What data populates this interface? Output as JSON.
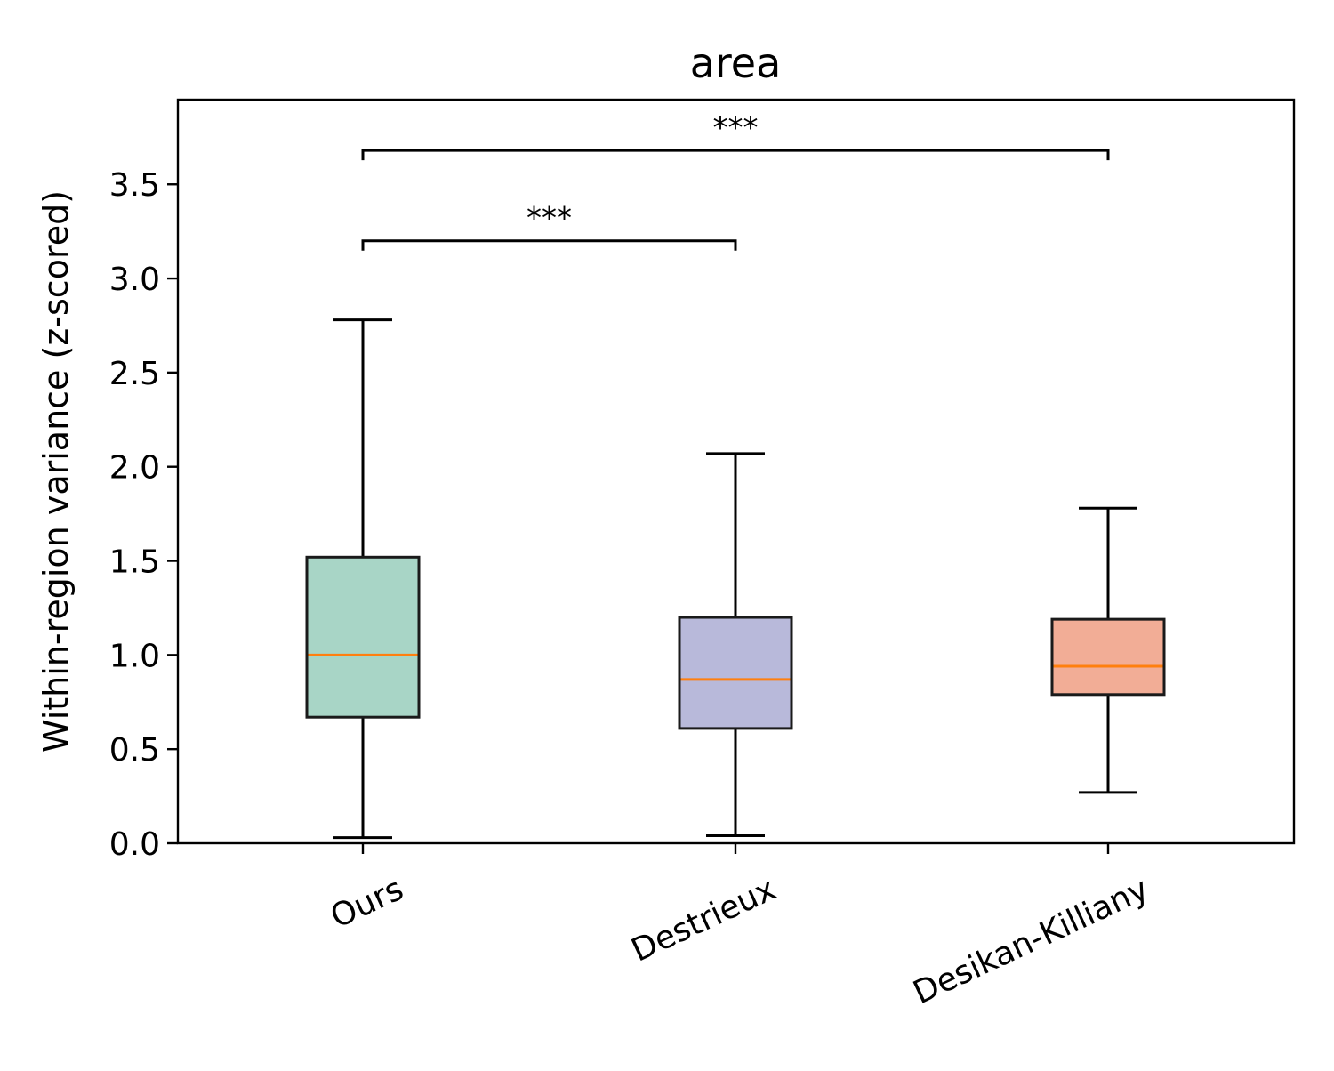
{
  "chart_data": {
    "type": "boxplot",
    "title": "area",
    "xlabel": "",
    "ylabel": "Within-region variance (z-scored)",
    "ylim": [
      0.0,
      3.95
    ],
    "yticks": [
      0.0,
      0.5,
      1.0,
      1.5,
      2.0,
      2.5,
      3.0,
      3.5
    ],
    "ytick_labels": [
      "0.0",
      "0.5",
      "1.0",
      "1.5",
      "2.0",
      "2.5",
      "3.0",
      "3.5"
    ],
    "categories": [
      "Ours",
      "Destrieux",
      "Desikan-Killiany"
    ],
    "boxes": [
      {
        "name": "Ours",
        "whisker_low": 0.03,
        "q1": 0.67,
        "median": 1.0,
        "q3": 1.52,
        "whisker_high": 2.78,
        "color": "#a8d5c6"
      },
      {
        "name": "Destrieux",
        "whisker_low": 0.04,
        "q1": 0.61,
        "median": 0.87,
        "q3": 1.2,
        "whisker_high": 2.07,
        "color": "#b8b9da"
      },
      {
        "name": "Desikan-Killiany",
        "whisker_low": 0.27,
        "q1": 0.79,
        "median": 0.94,
        "q3": 1.19,
        "whisker_high": 1.78,
        "color": "#f2ad96"
      }
    ],
    "median_color": "#ff7f0e",
    "significance": [
      {
        "from": "Ours",
        "to": "Destrieux",
        "y": 3.2,
        "label": "***"
      },
      {
        "from": "Ours",
        "to": "Desikan-Killiany",
        "y": 3.68,
        "label": "***"
      }
    ]
  }
}
